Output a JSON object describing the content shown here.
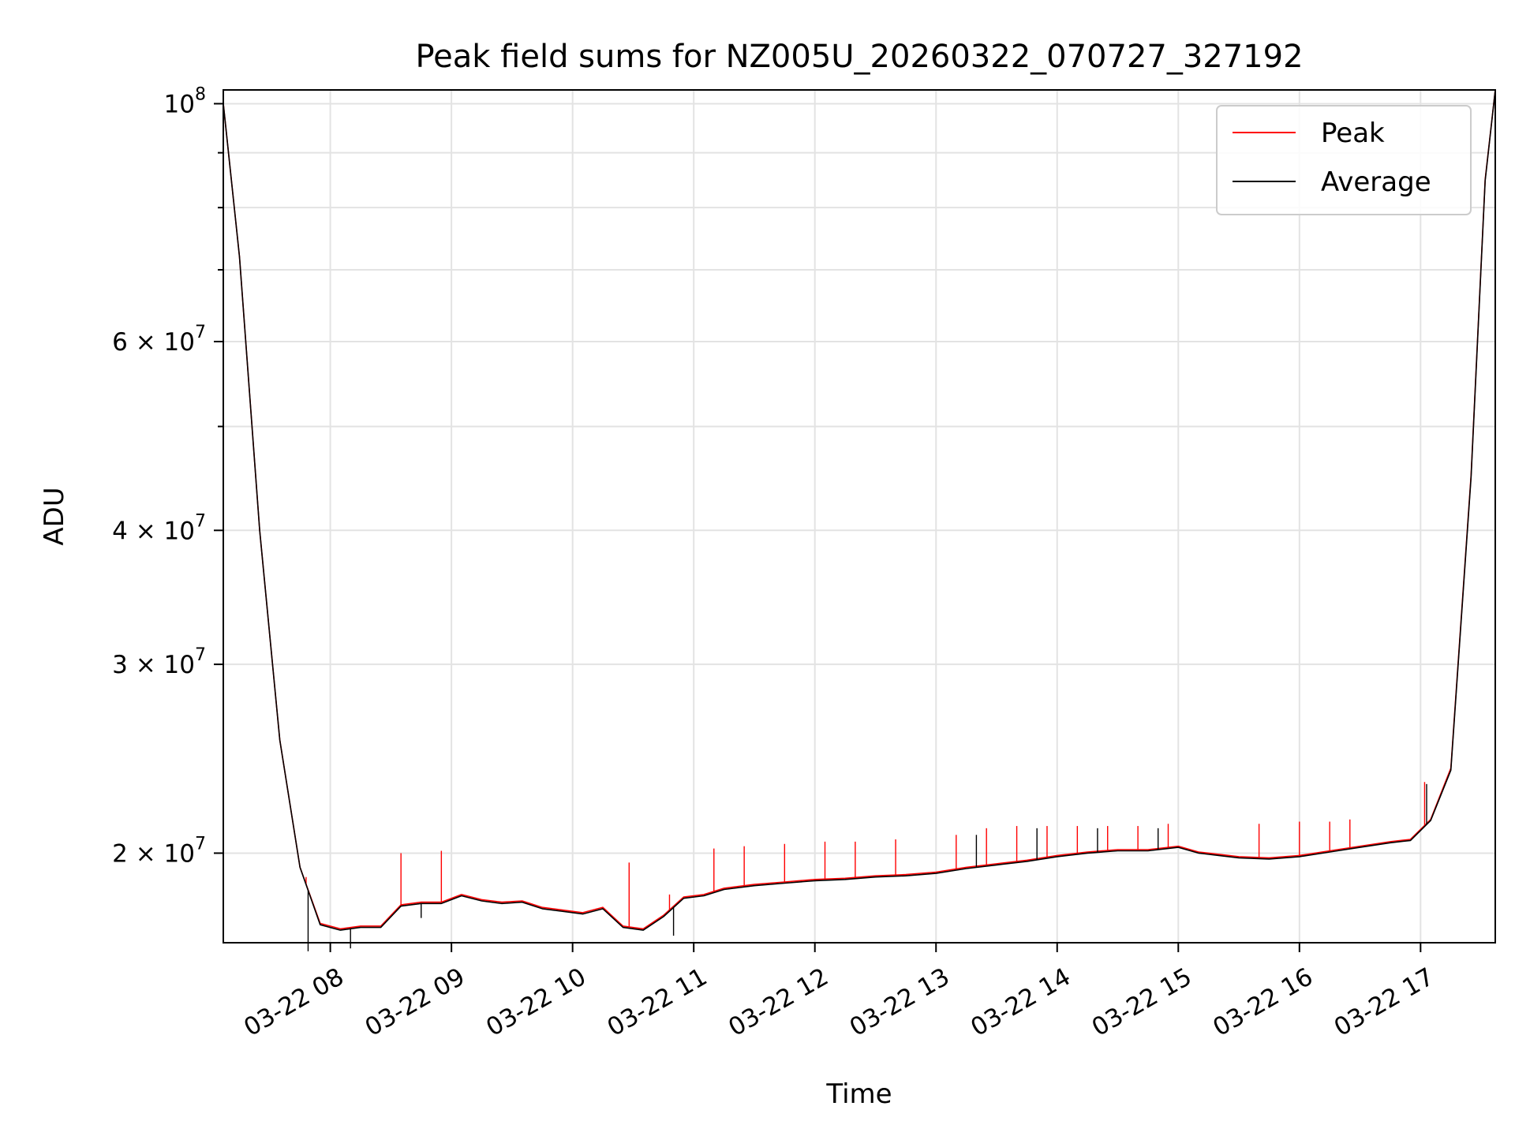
{
  "chart_data": {
    "type": "line",
    "title": "Peak field sums for NZ005U_20260322_070727_327192",
    "xlabel": "Time",
    "ylabel": "ADU",
    "yscale": "log",
    "grid": true,
    "legend_position": "top-right",
    "xlim": [
      "2026-03-22 07:07",
      "2026-03-22 17:37"
    ],
    "ylim": [
      16500000,
      103000000
    ],
    "x_ticks": [
      {
        "value": "2026-03-22 08:00",
        "label": "03-22 08"
      },
      {
        "value": "2026-03-22 09:00",
        "label": "03-22 09"
      },
      {
        "value": "2026-03-22 10:00",
        "label": "03-22 10"
      },
      {
        "value": "2026-03-22 11:00",
        "label": "03-22 11"
      },
      {
        "value": "2026-03-22 12:00",
        "label": "03-22 12"
      },
      {
        "value": "2026-03-22 13:00",
        "label": "03-22 13"
      },
      {
        "value": "2026-03-22 14:00",
        "label": "03-22 14"
      },
      {
        "value": "2026-03-22 15:00",
        "label": "03-22 15"
      },
      {
        "value": "2026-03-22 16:00",
        "label": "03-22 16"
      },
      {
        "value": "2026-03-22 17:00",
        "label": "03-22 17"
      }
    ],
    "y_ticks": [
      {
        "value": 20000000,
        "mantissa": "2",
        "base": "10",
        "exponent": "7"
      },
      {
        "value": 30000000,
        "mantissa": "3",
        "base": "10",
        "exponent": "7"
      },
      {
        "value": 40000000,
        "mantissa": "4",
        "base": "10",
        "exponent": "7"
      },
      {
        "value": 60000000,
        "mantissa": "6",
        "base": "10",
        "exponent": "7"
      },
      {
        "value": 100000000,
        "mantissa": "",
        "base": "10",
        "exponent": "8"
      }
    ],
    "y_minor_ticks": [
      50000000,
      70000000,
      80000000,
      90000000
    ],
    "series": [
      {
        "name": "Peak",
        "color": "#ff0000",
        "x": [
          "2026-03-22 07:07",
          "2026-03-22 07:15",
          "2026-03-22 07:25",
          "2026-03-22 07:35",
          "2026-03-22 07:45",
          "2026-03-22 07:55",
          "2026-03-22 08:05",
          "2026-03-22 08:15",
          "2026-03-22 08:25",
          "2026-03-22 08:35",
          "2026-03-22 08:45",
          "2026-03-22 08:55",
          "2026-03-22 09:05",
          "2026-03-22 09:15",
          "2026-03-22 09:25",
          "2026-03-22 09:35",
          "2026-03-22 09:45",
          "2026-03-22 09:55",
          "2026-03-22 10:05",
          "2026-03-22 10:15",
          "2026-03-22 10:25",
          "2026-03-22 10:35",
          "2026-03-22 10:45",
          "2026-03-22 10:55",
          "2026-03-22 11:05",
          "2026-03-22 11:15",
          "2026-03-22 11:30",
          "2026-03-22 11:45",
          "2026-03-22 12:00",
          "2026-03-22 12:15",
          "2026-03-22 12:30",
          "2026-03-22 12:45",
          "2026-03-22 13:00",
          "2026-03-22 13:15",
          "2026-03-22 13:30",
          "2026-03-22 13:45",
          "2026-03-22 14:00",
          "2026-03-22 14:15",
          "2026-03-22 14:30",
          "2026-03-22 14:45",
          "2026-03-22 15:00",
          "2026-03-22 15:10",
          "2026-03-22 15:20",
          "2026-03-22 15:30",
          "2026-03-22 15:45",
          "2026-03-22 16:00",
          "2026-03-22 16:15",
          "2026-03-22 16:30",
          "2026-03-22 16:45",
          "2026-03-22 16:55",
          "2026-03-22 17:05",
          "2026-03-22 17:15",
          "2026-03-22 17:25",
          "2026-03-22 17:32",
          "2026-03-22 17:37"
        ],
        "y": [
          100000000,
          72000000,
          40000000,
          25500000,
          19400000,
          17200000,
          17000000,
          17100000,
          17100000,
          17900000,
          18000000,
          18000000,
          18300000,
          18100000,
          18000000,
          18050000,
          17800000,
          17700000,
          17600000,
          17800000,
          17100000,
          17000000,
          17500000,
          18200000,
          18300000,
          18550000,
          18700000,
          18800000,
          18900000,
          18950000,
          19050000,
          19100000,
          19200000,
          19400000,
          19550000,
          19700000,
          19900000,
          20050000,
          20150000,
          20150000,
          20300000,
          20050000,
          19950000,
          19850000,
          19800000,
          19900000,
          20100000,
          20300000,
          20500000,
          20600000,
          21500000,
          24000000,
          45000000,
          85000000,
          103000000
        ],
        "spikes": [
          [
            "2026-03-22 07:48",
            19000000
          ],
          [
            "2026-03-22 08:35",
            20000000
          ],
          [
            "2026-03-22 08:55",
            20100000
          ],
          [
            "2026-03-22 10:28",
            19600000
          ],
          [
            "2026-03-22 10:48",
            18300000
          ],
          [
            "2026-03-22 11:10",
            20200000
          ],
          [
            "2026-03-22 11:25",
            20300000
          ],
          [
            "2026-03-22 11:45",
            20400000
          ],
          [
            "2026-03-22 12:05",
            20500000
          ],
          [
            "2026-03-22 12:20",
            20500000
          ],
          [
            "2026-03-22 12:40",
            20600000
          ],
          [
            "2026-03-22 13:10",
            20800000
          ],
          [
            "2026-03-22 13:25",
            21100000
          ],
          [
            "2026-03-22 13:40",
            21200000
          ],
          [
            "2026-03-22 13:55",
            21200000
          ],
          [
            "2026-03-22 14:10",
            21200000
          ],
          [
            "2026-03-22 14:25",
            21200000
          ],
          [
            "2026-03-22 14:40",
            21200000
          ],
          [
            "2026-03-22 14:55",
            21300000
          ],
          [
            "2026-03-22 15:40",
            21300000
          ],
          [
            "2026-03-22 16:00",
            21400000
          ],
          [
            "2026-03-22 16:15",
            21400000
          ],
          [
            "2026-03-22 16:25",
            21500000
          ],
          [
            "2026-03-22 17:02",
            23300000
          ]
        ]
      },
      {
        "name": "Average",
        "color": "#000000",
        "x": [
          "2026-03-22 07:07",
          "2026-03-22 07:15",
          "2026-03-22 07:25",
          "2026-03-22 07:35",
          "2026-03-22 07:45",
          "2026-03-22 07:55",
          "2026-03-22 08:05",
          "2026-03-22 08:15",
          "2026-03-22 08:25",
          "2026-03-22 08:35",
          "2026-03-22 08:45",
          "2026-03-22 08:55",
          "2026-03-22 09:05",
          "2026-03-22 09:15",
          "2026-03-22 09:25",
          "2026-03-22 09:35",
          "2026-03-22 09:45",
          "2026-03-22 09:55",
          "2026-03-22 10:05",
          "2026-03-22 10:15",
          "2026-03-22 10:25",
          "2026-03-22 10:35",
          "2026-03-22 10:45",
          "2026-03-22 10:55",
          "2026-03-22 11:05",
          "2026-03-22 11:15",
          "2026-03-22 11:30",
          "2026-03-22 11:45",
          "2026-03-22 12:00",
          "2026-03-22 12:15",
          "2026-03-22 12:30",
          "2026-03-22 12:45",
          "2026-03-22 13:00",
          "2026-03-22 13:15",
          "2026-03-22 13:30",
          "2026-03-22 13:45",
          "2026-03-22 14:00",
          "2026-03-22 14:15",
          "2026-03-22 14:30",
          "2026-03-22 14:45",
          "2026-03-22 15:00",
          "2026-03-22 15:10",
          "2026-03-22 15:20",
          "2026-03-22 15:30",
          "2026-03-22 15:45",
          "2026-03-22 16:00",
          "2026-03-22 16:15",
          "2026-03-22 16:30",
          "2026-03-22 16:45",
          "2026-03-22 16:55",
          "2026-03-22 17:05",
          "2026-03-22 17:15",
          "2026-03-22 17:25",
          "2026-03-22 17:32",
          "2026-03-22 17:37"
        ],
        "y": [
          100000000,
          72000000,
          40000000,
          25500000,
          19400000,
          17150000,
          16950000,
          17050000,
          17050000,
          17850000,
          17950000,
          17950000,
          18250000,
          18050000,
          17950000,
          18000000,
          17750000,
          17650000,
          17550000,
          17750000,
          17050000,
          16950000,
          17450000,
          18150000,
          18250000,
          18500000,
          18650000,
          18750000,
          18850000,
          18900000,
          19000000,
          19050000,
          19150000,
          19350000,
          19500000,
          19650000,
          19850000,
          20000000,
          20100000,
          20100000,
          20250000,
          20000000,
          19900000,
          19800000,
          19750000,
          19850000,
          20050000,
          20250000,
          20450000,
          20550000,
          21450000,
          23900000,
          44800000,
          84800000,
          103000000
        ],
        "spikes": [
          [
            "2026-03-22 07:49",
            16200000
          ],
          [
            "2026-03-22 08:10",
            16300000
          ],
          [
            "2026-03-22 08:45",
            17400000
          ],
          [
            "2026-03-22 10:50",
            16750000
          ],
          [
            "2026-03-22 13:20",
            20800000
          ],
          [
            "2026-03-22 13:50",
            21100000
          ],
          [
            "2026-03-22 14:20",
            21100000
          ],
          [
            "2026-03-22 14:50",
            21100000
          ],
          [
            "2026-03-22 17:03",
            23200000
          ]
        ]
      }
    ]
  }
}
